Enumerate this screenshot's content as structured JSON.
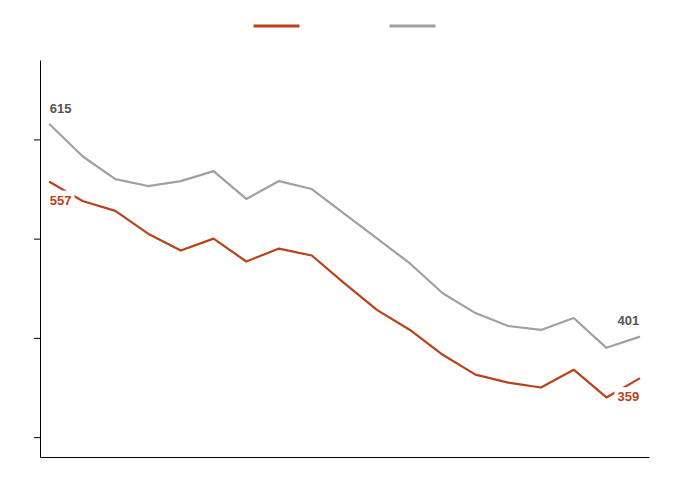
{
  "chart_data": {
    "type": "line",
    "x": [
      0,
      1,
      2,
      3,
      4,
      5,
      6,
      7,
      8,
      9,
      10,
      11,
      12,
      13,
      14,
      15,
      16,
      17,
      18
    ],
    "series": [
      {
        "color": "#a0a0a0",
        "values": [
          615,
          583,
          560,
          553,
          558,
          568,
          540,
          558,
          550,
          525,
          500,
          475,
          445,
          425,
          412,
          408,
          420,
          390,
          401
        ],
        "value_labels": [
          "615",
          null,
          null,
          null,
          null,
          null,
          null,
          null,
          null,
          null,
          null,
          null,
          null,
          null,
          null,
          null,
          null,
          null,
          "401"
        ]
      },
      {
        "color": "#b8431a",
        "values": [
          557,
          538,
          528,
          505,
          488,
          500,
          477,
          490,
          483,
          455,
          428,
          408,
          383,
          363,
          355,
          350,
          368,
          340,
          359
        ],
        "value_labels": [
          "557",
          null,
          null,
          null,
          null,
          null,
          null,
          null,
          null,
          null,
          null,
          null,
          null,
          null,
          null,
          null,
          null,
          null,
          "359"
        ]
      }
    ],
    "xlim": [
      -0.3,
      18.3
    ],
    "xticks": [],
    "ylim": [
      280,
      680
    ],
    "yticks": [
      300,
      400,
      500,
      600
    ],
    "grid": false,
    "tick_labels": false,
    "data_labels": true,
    "legend": "top"
  }
}
